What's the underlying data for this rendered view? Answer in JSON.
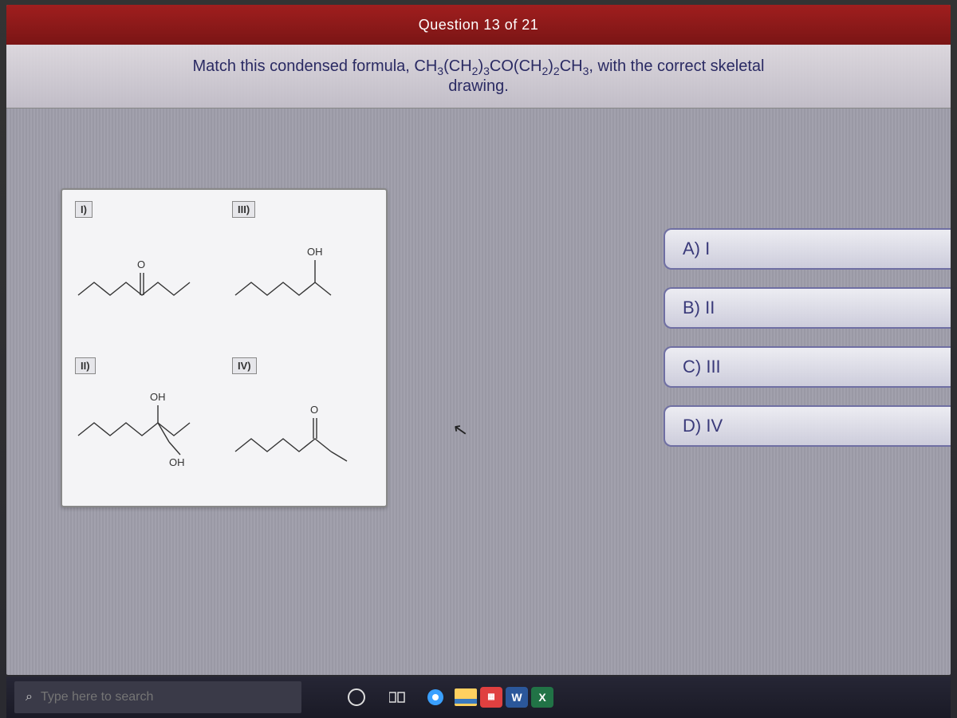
{
  "header": {
    "progress_text": "Question 13 of 21"
  },
  "question": {
    "line1_prefix": "Match this condensed formula, ",
    "formula_html": "CH<sub>3</sub>(CH<sub>2</sub>)<sub>3</sub>CO(CH<sub>2</sub>)<sub>2</sub>CH<sub>3</sub>",
    "line1_suffix": ", with the correct skeletal",
    "line2": "drawing."
  },
  "structures": {
    "labels": {
      "i": "I)",
      "ii": "II)",
      "iii": "III)",
      "iv": "IV)"
    },
    "atom_labels": {
      "o_dbl": "O",
      "oh": "OH"
    },
    "stroke_color": "#333333",
    "stroke_width": 1.4
  },
  "answers": {
    "a": "A) I",
    "b": "B) II",
    "c": "C) III",
    "d": "D) IV"
  },
  "taskbar": {
    "search_placeholder": "Type here to search",
    "apps": {
      "cortana": "O",
      "browser_color": "#3aa0ff",
      "paint_color": "#ffd040",
      "store1_bg": "#e04040",
      "word_bg": "#2b579a",
      "word_label": "W",
      "excel_bg": "#217346",
      "excel_label": "X"
    }
  },
  "colors": {
    "header_bg_top": "#a01e1e",
    "answer_text": "#3a3a7a"
  }
}
